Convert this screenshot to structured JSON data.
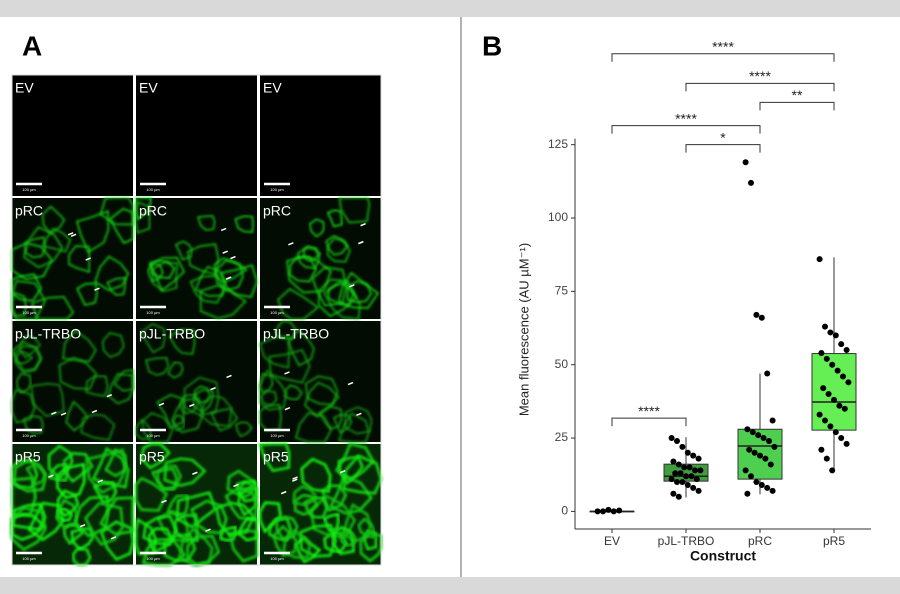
{
  "panel_a": {
    "label": "A",
    "scale_bar": "100 µm",
    "rows": [
      "EV",
      "pRC",
      "pJL-TRBO",
      "pR5"
    ]
  },
  "chart_data": {
    "type": "box",
    "panel_label": "B",
    "x_label": "Construct",
    "y_label": "Mean fluorescence (AU µM⁻¹)",
    "categories": [
      "EV",
      "pJL-TRBO",
      "pRC",
      "pR5"
    ],
    "colors": [
      "#ffffff",
      "#3f9f3f",
      "#4fcf4f",
      "#66ee55"
    ],
    "boxes": [
      {
        "min": 0,
        "q1": 0,
        "median": 0,
        "q3": 0,
        "max": 0
      },
      {
        "min": 4.8,
        "q1": 10.3,
        "median": 12,
        "q3": 16.1,
        "max": 25.3
      },
      {
        "min": 5.8,
        "q1": 11,
        "median": 22.3,
        "q3": 28,
        "max": 47
      },
      {
        "min": 13.7,
        "q1": 27.7,
        "median": 37.3,
        "q3": 53.8,
        "max": 86.6
      }
    ],
    "points": [
      [
        0,
        0,
        0.5,
        0,
        0.3
      ],
      [
        25,
        24,
        22,
        20,
        19,
        18,
        17,
        16,
        15,
        15,
        14,
        14,
        13,
        13,
        12,
        12,
        11,
        11,
        10,
        10,
        9,
        8,
        7,
        6,
        5
      ],
      [
        119,
        112,
        67,
        66,
        47,
        31,
        28,
        27,
        26,
        25,
        24,
        22,
        21,
        20,
        19,
        18,
        16,
        14,
        12,
        10,
        9,
        8,
        7,
        6
      ],
      [
        86,
        63,
        61,
        60,
        57,
        55,
        54,
        52,
        50,
        48,
        46,
        44,
        42,
        40,
        38,
        36,
        35,
        33,
        31,
        29,
        27,
        25,
        23,
        21,
        18,
        14
      ]
    ],
    "brackets": [
      {
        "from": "EV",
        "to": "pJL-TRBO",
        "y": 31.8,
        "label": "****"
      },
      {
        "from": "pJL-TRBO",
        "to": "pRC",
        "y": 125,
        "label": "*"
      },
      {
        "from": "EV",
        "to": "pRC",
        "y": 131.5,
        "label": "****"
      },
      {
        "from": "pRC",
        "to": "pR5",
        "y": 139.4,
        "label": "**"
      },
      {
        "from": "pJL-TRBO",
        "to": "pR5",
        "y": 145.9,
        "label": "****"
      },
      {
        "from": "EV",
        "to": "pR5",
        "y": 156,
        "label": "****"
      }
    ],
    "ylim": [
      -6,
      160
    ],
    "yticks": [
      0,
      25,
      50,
      75,
      100,
      125
    ]
  }
}
